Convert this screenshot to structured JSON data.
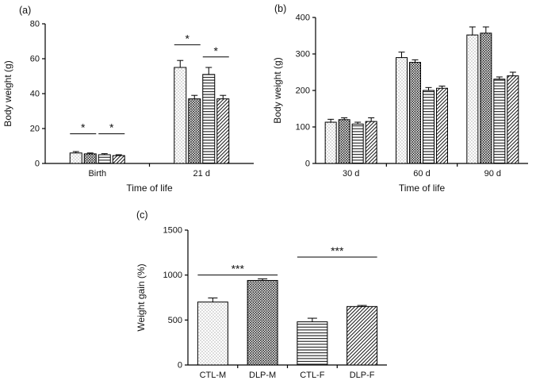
{
  "figure": {
    "background": "#ffffff",
    "ink_color": "#000000",
    "panels": [
      "(a)",
      "(b)",
      "(c)"
    ]
  },
  "chart_data": [
    {
      "panel": "(a)",
      "type": "bar",
      "title": "",
      "ylabel": "Body weight (g)",
      "xlabel": "Time of life",
      "ylim": [
        0,
        80
      ],
      "yticks": [
        0,
        20,
        40,
        60,
        80
      ],
      "categories": [
        "Birth",
        "21 d"
      ],
      "series": [
        {
          "name": "CTL-M",
          "pattern": "dots-sparse",
          "values": [
            6,
            55
          ],
          "errors": [
            0.8,
            4
          ]
        },
        {
          "name": "DLP-M",
          "pattern": "dots-dense",
          "values": [
            5.5,
            37
          ],
          "errors": [
            0.5,
            2
          ]
        },
        {
          "name": "CTL-F",
          "pattern": "h-lines",
          "values": [
            5,
            51
          ],
          "errors": [
            0.6,
            4
          ]
        },
        {
          "name": "DLP-F",
          "pattern": "d-lines",
          "values": [
            4.5,
            37
          ],
          "errors": [
            0.5,
            2
          ]
        }
      ],
      "significance": [
        {
          "label": "*",
          "from": [
            0,
            0
          ],
          "to": [
            0,
            1
          ],
          "y": 17
        },
        {
          "label": "*",
          "from": [
            0,
            2
          ],
          "to": [
            0,
            3
          ],
          "y": 17
        },
        {
          "label": "*",
          "from": [
            1,
            0
          ],
          "to": [
            1,
            1
          ],
          "y": 68
        },
        {
          "label": "*",
          "from": [
            1,
            2
          ],
          "to": [
            1,
            3
          ],
          "y": 61
        }
      ],
      "legend": false,
      "grid": false
    },
    {
      "panel": "(b)",
      "type": "bar",
      "title": "",
      "ylabel": "Body weight (g)",
      "xlabel": "Time of life",
      "ylim": [
        0,
        400
      ],
      "yticks": [
        0,
        100,
        200,
        300,
        400
      ],
      "categories": [
        "30 d",
        "60 d",
        "90 d"
      ],
      "series": [
        {
          "name": "CTL-M",
          "pattern": "dots-sparse",
          "values": [
            113,
            290,
            352
          ],
          "errors": [
            8,
            15,
            22
          ]
        },
        {
          "name": "DLP-M",
          "pattern": "dots-dense",
          "values": [
            120,
            277,
            357
          ],
          "errors": [
            5,
            7,
            17
          ]
        },
        {
          "name": "CTL-F",
          "pattern": "h-lines",
          "values": [
            108,
            200,
            231
          ],
          "errors": [
            5,
            8,
            6
          ]
        },
        {
          "name": "DLP-F",
          "pattern": "d-lines",
          "values": [
            115,
            206,
            240
          ],
          "errors": [
            10,
            6,
            10
          ]
        }
      ],
      "significance": [],
      "legend": false,
      "grid": false
    },
    {
      "panel": "(c)",
      "type": "bar",
      "title": "",
      "ylabel": "Weight gain (%)",
      "xlabel": "",
      "ylim": [
        0,
        1500
      ],
      "yticks": [
        0,
        500,
        1000,
        1500
      ],
      "categories": [
        "CTL-M",
        "DLP-M",
        "CTL-F",
        "DLP-F"
      ],
      "series": [
        {
          "name": "",
          "patterns": [
            "dots-sparse",
            "dots-dense",
            "h-lines",
            "d-lines"
          ],
          "values": [
            700,
            940,
            480,
            650
          ],
          "errors": [
            45,
            18,
            40,
            12
          ]
        }
      ],
      "significance": [
        {
          "label": "***",
          "from": [
            0,
            0
          ],
          "to": [
            1,
            0
          ],
          "y": 1000
        },
        {
          "label": "***",
          "from": [
            2,
            0
          ],
          "to": [
            3,
            0
          ],
          "y": 1200
        }
      ],
      "legend": false,
      "grid": false
    }
  ]
}
